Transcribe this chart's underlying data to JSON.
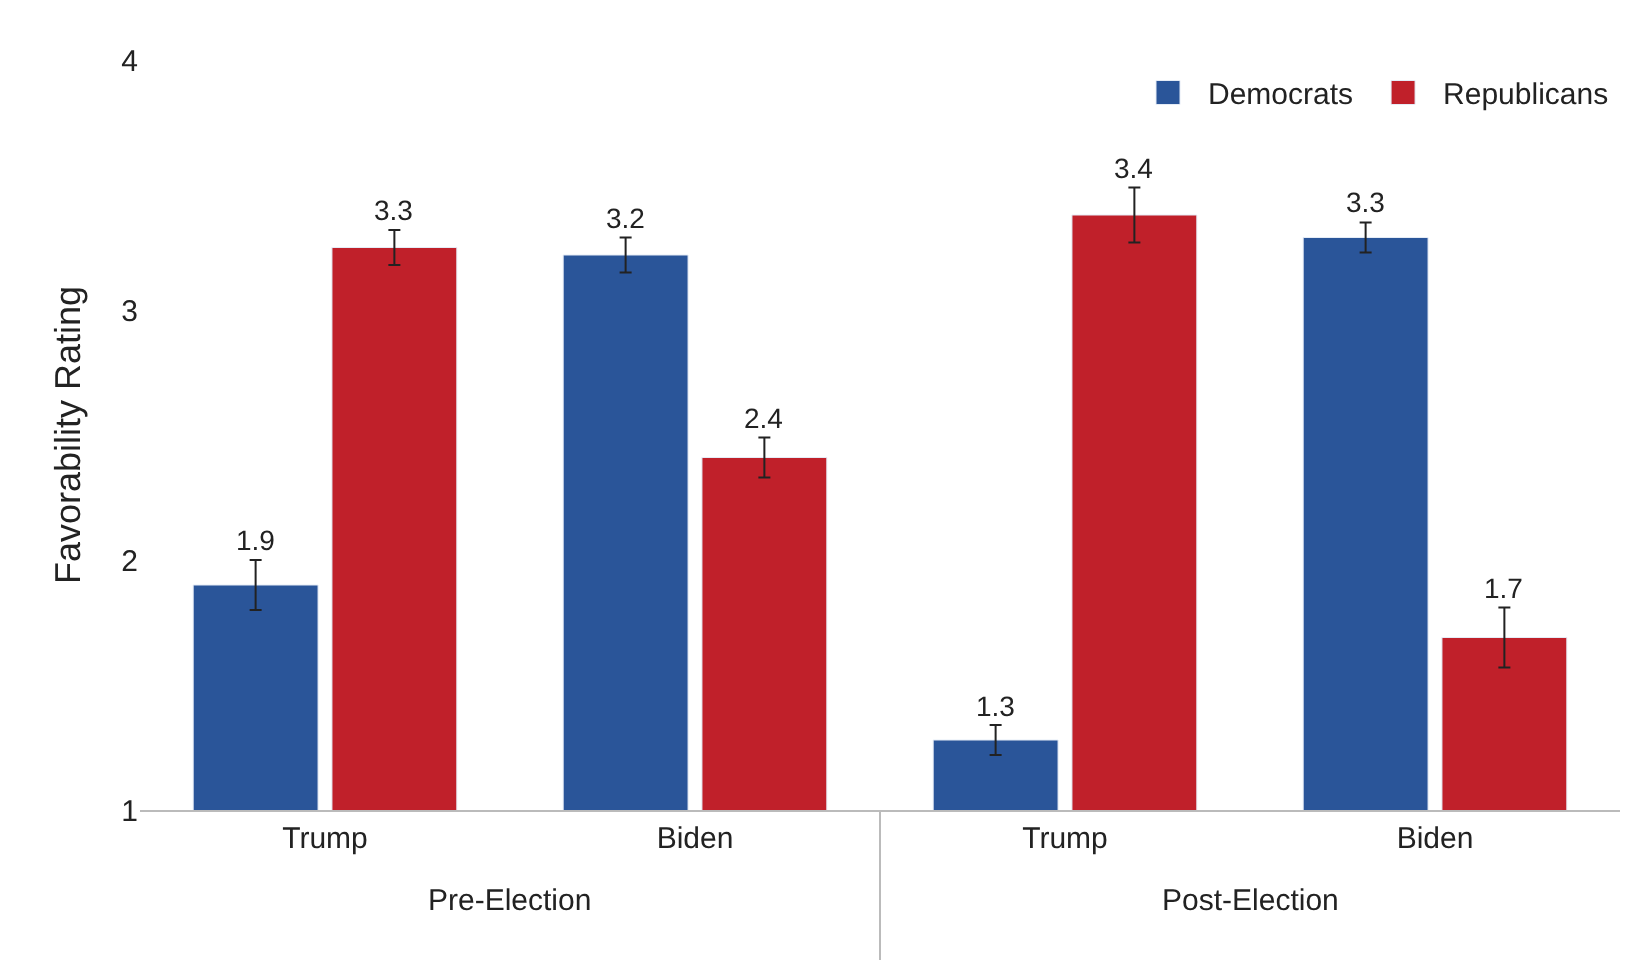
{
  "chart_data": {
    "type": "bar",
    "ylabel": "Favorability Rating",
    "categories": [
      "Trump",
      "Biden",
      "Trump",
      "Biden"
    ],
    "series": [
      {
        "name": "Democrats",
        "color": "#2a5599",
        "values": [
          1.9,
          3.22,
          1.28,
          3.29
        ],
        "errors": [
          0.1,
          0.07,
          0.06,
          0.06
        ],
        "value_labels": [
          "1.9",
          "3.2",
          "1.3",
          "3.3"
        ]
      },
      {
        "name": "Republicans",
        "color": "#c0202a",
        "values": [
          3.25,
          2.41,
          3.38,
          1.69
        ],
        "errors": [
          0.07,
          0.08,
          0.11,
          0.12
        ],
        "value_labels": [
          "3.3",
          "2.4",
          "3.4",
          "1.7"
        ]
      }
    ],
    "annotations": [
      "Pre-Election",
      "Post-Election"
    ],
    "ylim": [
      1,
      4
    ],
    "yticks": [
      1,
      2,
      3,
      4
    ],
    "legend": "top right"
  }
}
